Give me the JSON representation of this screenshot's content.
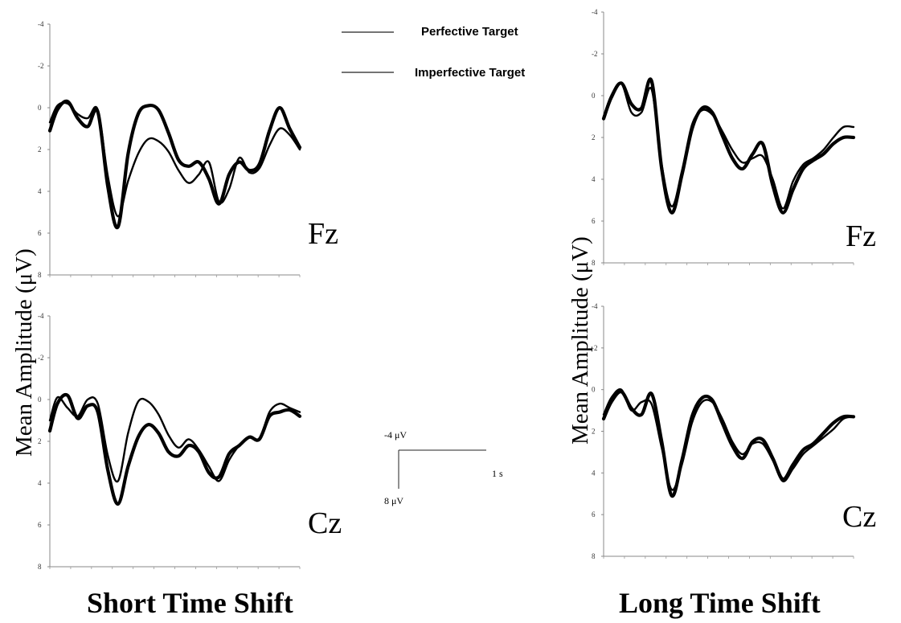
{
  "legend": {
    "perfective": "Perfective Target",
    "imperfective": "Imperfective Target"
  },
  "y_axis_label": "Mean Amplitude (μV)",
  "scale_bar": {
    "top": "-4 μV",
    "bottom": "8 μV",
    "time": "1 s"
  },
  "colors": {
    "perfective": "#000000",
    "imperfective": "#000000"
  },
  "chart_data": [
    {
      "type": "line",
      "panel_title": "Short Time Shift",
      "electrode": "Fz",
      "ylabel": "Mean Amplitude (μV)",
      "ylim": [
        -4,
        8
      ],
      "y_axis_inverted": true,
      "yticks": [
        -4,
        -2,
        0,
        2,
        4,
        6,
        8
      ],
      "ytick_labels": [
        "-4",
        "-2",
        "0",
        "2",
        "4",
        "6",
        "8"
      ],
      "x": [
        0,
        0.03,
        0.07,
        0.11,
        0.15,
        0.19,
        0.23,
        0.27,
        0.31,
        0.35,
        0.39,
        0.43,
        0.47,
        0.51,
        0.55,
        0.59,
        0.63,
        0.67,
        0.71,
        0.75,
        0.79,
        0.83,
        0.87,
        0.91,
        0.95,
        0.99
      ],
      "series": [
        {
          "name": "Perfective Target",
          "values": [
            1.1,
            0.1,
            -0.3,
            0.5,
            0.9,
            0.2,
            3.8,
            5.7,
            2.2,
            0.3,
            -0.1,
            0.1,
            1.2,
            2.5,
            2.8,
            2.6,
            3.4,
            4.6,
            3.2,
            2.6,
            3.0,
            2.7,
            1.1,
            0.0,
            1.0,
            1.9
          ]
        },
        {
          "name": "Imperfective Target",
          "values": [
            0.7,
            -0.1,
            -0.2,
            0.3,
            0.5,
            0.1,
            3.3,
            5.2,
            3.5,
            2.2,
            1.5,
            1.6,
            2.1,
            3.0,
            3.6,
            3.2,
            2.6,
            4.5,
            3.9,
            2.4,
            3.1,
            2.9,
            1.8,
            1.0,
            1.3,
            2.0
          ]
        }
      ]
    },
    {
      "type": "line",
      "panel_title": "Short Time Shift",
      "electrode": "Cz",
      "ylabel": "Mean Amplitude (μV)",
      "ylim": [
        -4,
        8
      ],
      "y_axis_inverted": true,
      "yticks": [
        -4,
        -2,
        0,
        2,
        4,
        6,
        8
      ],
      "ytick_labels": [
        "-4",
        "-2",
        "0",
        "2",
        "4",
        "6",
        "8"
      ],
      "x": [
        0,
        0.03,
        0.07,
        0.11,
        0.15,
        0.19,
        0.23,
        0.27,
        0.31,
        0.35,
        0.39,
        0.43,
        0.47,
        0.51,
        0.55,
        0.59,
        0.63,
        0.67,
        0.71,
        0.75,
        0.79,
        0.83,
        0.87,
        0.91,
        0.95,
        0.99
      ],
      "series": [
        {
          "name": "Perfective Target",
          "values": [
            1.5,
            0.2,
            -0.2,
            0.9,
            0.3,
            0.6,
            3.4,
            5.0,
            3.2,
            1.8,
            1.2,
            1.6,
            2.5,
            2.7,
            2.2,
            2.5,
            3.5,
            3.7,
            2.6,
            2.2,
            1.8,
            1.9,
            0.8,
            0.6,
            0.5,
            0.8
          ]
        },
        {
          "name": "Imperfective Target",
          "values": [
            1.0,
            -0.1,
            0.4,
            0.8,
            0.0,
            0.2,
            2.7,
            3.9,
            1.6,
            0.1,
            0.1,
            0.7,
            1.7,
            2.3,
            1.9,
            2.4,
            3.2,
            3.9,
            2.9,
            2.2,
            1.8,
            1.9,
            0.6,
            0.2,
            0.4,
            0.6
          ]
        }
      ]
    },
    {
      "type": "line",
      "panel_title": "Long Time Shift",
      "electrode": "Fz",
      "ylabel": "Mean Amplitude (μV)",
      "ylim": [
        -4,
        8
      ],
      "y_axis_inverted": true,
      "yticks": [
        -4,
        -2,
        0,
        2,
        4,
        6,
        8
      ],
      "ytick_labels": [
        "-4",
        "-2",
        "0",
        "2",
        "4",
        "6",
        "8"
      ],
      "x": [
        0,
        0.03,
        0.07,
        0.11,
        0.15,
        0.19,
        0.23,
        0.27,
        0.31,
        0.35,
        0.39,
        0.43,
        0.47,
        0.51,
        0.55,
        0.59,
        0.63,
        0.67,
        0.71,
        0.75,
        0.79,
        0.83,
        0.87,
        0.91,
        0.95,
        0.99
      ],
      "series": [
        {
          "name": "Perfective Target",
          "values": [
            1.1,
            0.1,
            -0.6,
            0.4,
            0.6,
            -0.7,
            3.5,
            5.6,
            3.8,
            1.6,
            0.6,
            0.8,
            1.9,
            3.0,
            3.5,
            2.8,
            2.3,
            4.3,
            5.6,
            4.5,
            3.5,
            3.1,
            2.8,
            2.3,
            2.0,
            2.0
          ]
        },
        {
          "name": "Imperfective Target",
          "values": [
            1.0,
            0.0,
            -0.6,
            0.8,
            0.8,
            -0.3,
            3.3,
            5.3,
            3.6,
            1.4,
            0.7,
            0.9,
            1.7,
            2.6,
            3.2,
            3.0,
            2.9,
            4.0,
            5.4,
            4.1,
            3.3,
            3.0,
            2.6,
            2.0,
            1.5,
            1.5
          ]
        }
      ]
    },
    {
      "type": "line",
      "panel_title": "Long Time Shift",
      "electrode": "Cz",
      "ylabel": "Mean Amplitude (μV)",
      "ylim": [
        -4,
        8
      ],
      "y_axis_inverted": true,
      "yticks": [
        -4,
        -2,
        0,
        2,
        4,
        6,
        8
      ],
      "ytick_labels": [
        "-4",
        "-2",
        "0",
        "2",
        "4",
        "6",
        "8"
      ],
      "x": [
        0,
        0.03,
        0.07,
        0.11,
        0.15,
        0.19,
        0.23,
        0.27,
        0.31,
        0.35,
        0.39,
        0.43,
        0.47,
        0.51,
        0.55,
        0.59,
        0.63,
        0.67,
        0.71,
        0.75,
        0.79,
        0.83,
        0.87,
        0.91,
        0.95,
        0.99
      ],
      "series": [
        {
          "name": "Perfective Target",
          "values": [
            1.4,
            0.6,
            0.1,
            0.9,
            1.2,
            0.2,
            2.5,
            5.1,
            3.4,
            1.3,
            0.4,
            0.5,
            1.6,
            2.7,
            3.3,
            2.5,
            2.4,
            3.3,
            4.3,
            3.6,
            2.9,
            2.6,
            2.1,
            1.6,
            1.3,
            1.3
          ]
        },
        {
          "name": "Imperfective Target",
          "values": [
            1.2,
            0.4,
            0.0,
            1.0,
            0.6,
            0.7,
            2.8,
            4.8,
            3.6,
            1.6,
            0.6,
            0.6,
            1.4,
            2.5,
            3.1,
            2.6,
            2.6,
            3.4,
            4.4,
            3.8,
            3.1,
            2.7,
            2.3,
            1.9,
            1.4,
            1.3
          ]
        }
      ]
    }
  ]
}
